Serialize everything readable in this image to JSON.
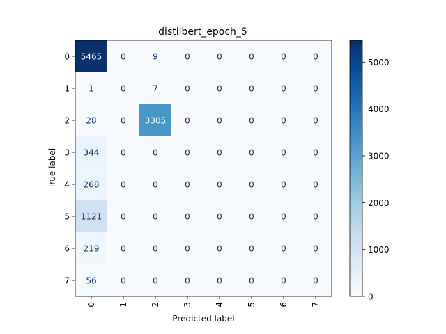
{
  "chart_data": {
    "type": "heatmap",
    "title": "distilbert_epoch_5",
    "xlabel": "Predicted label",
    "ylabel": "True label",
    "x_ticks": [
      "0",
      "1",
      "2",
      "3",
      "4",
      "5",
      "6",
      "7"
    ],
    "y_ticks": [
      "0",
      "1",
      "2",
      "3",
      "4",
      "5",
      "6",
      "7"
    ],
    "matrix": [
      [
        5465,
        0,
        9,
        0,
        0,
        0,
        0,
        0
      ],
      [
        1,
        0,
        7,
        0,
        0,
        0,
        0,
        0
      ],
      [
        28,
        0,
        3305,
        0,
        0,
        0,
        0,
        0
      ],
      [
        344,
        0,
        0,
        0,
        0,
        0,
        0,
        0
      ],
      [
        268,
        0,
        0,
        0,
        0,
        0,
        0,
        0
      ],
      [
        1121,
        0,
        0,
        0,
        0,
        0,
        0,
        0
      ],
      [
        219,
        0,
        0,
        0,
        0,
        0,
        0,
        0
      ],
      [
        56,
        0,
        0,
        0,
        0,
        0,
        0,
        0
      ]
    ],
    "colormap": "Blues",
    "color_range": [
      0,
      5465
    ],
    "colorbar_ticks": [
      "0",
      "1000",
      "2000",
      "3000",
      "4000",
      "5000"
    ],
    "colorbar_tick_values": [
      0,
      1000,
      2000,
      3000,
      4000,
      5000
    ],
    "text_colors": {
      "light": "#ffffff",
      "dark": "#08306b"
    },
    "x_tick_rotation": "vertical",
    "grid": false
  }
}
